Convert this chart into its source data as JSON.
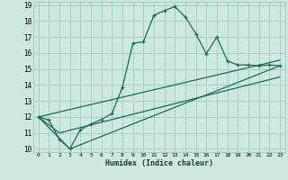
{
  "xlabel": "Humidex (Indice chaleur)",
  "background_color": "#cde8e0",
  "grid_color": "#a8cec5",
  "line_color": "#1a6b5a",
  "xlim": [
    -0.5,
    23.5
  ],
  "ylim": [
    9.8,
    19.2
  ],
  "xticks": [
    0,
    1,
    2,
    3,
    4,
    5,
    6,
    7,
    8,
    9,
    10,
    11,
    12,
    13,
    14,
    15,
    16,
    17,
    18,
    19,
    20,
    21,
    22,
    23
  ],
  "yticks": [
    10,
    11,
    12,
    13,
    14,
    15,
    16,
    17,
    18,
    19
  ],
  "curve1_x": [
    0,
    1,
    2,
    3,
    4,
    5,
    6,
    7,
    8,
    9,
    10,
    11,
    12,
    13,
    14,
    15,
    16,
    17,
    18,
    19,
    20,
    21,
    22,
    23
  ],
  "curve1_y": [
    12.0,
    11.8,
    10.6,
    10.0,
    11.2,
    11.55,
    11.85,
    12.2,
    13.85,
    16.6,
    16.7,
    18.35,
    18.65,
    18.9,
    18.25,
    17.2,
    15.95,
    17.0,
    15.5,
    15.25,
    15.25,
    15.2,
    15.25,
    15.2
  ],
  "line1_x": [
    0,
    23
  ],
  "line1_y": [
    12.0,
    15.55
  ],
  "line2_x": [
    0,
    2,
    23
  ],
  "line2_y": [
    12.0,
    11.0,
    14.5
  ],
  "line3_x": [
    0,
    3,
    23
  ],
  "line3_y": [
    12.0,
    10.0,
    15.2
  ]
}
